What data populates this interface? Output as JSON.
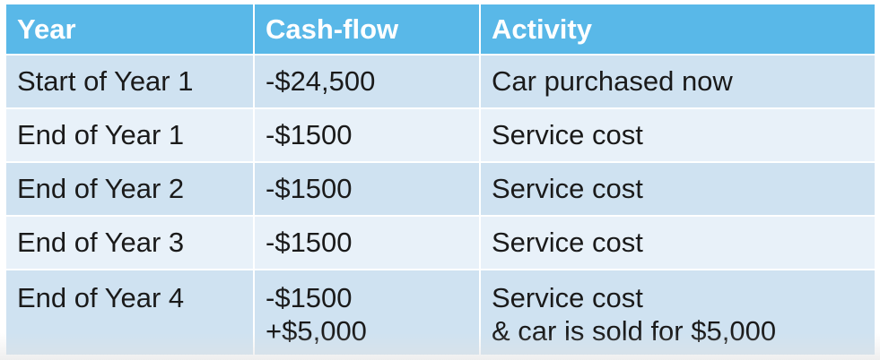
{
  "table": {
    "headers": [
      "Year",
      "Cash-flow",
      "Activity"
    ],
    "rows": [
      {
        "year": "Start of Year 1",
        "cashflow": [
          "-$24,500"
        ],
        "activity": [
          "Car purchased now"
        ]
      },
      {
        "year": "End of Year 1",
        "cashflow": [
          "-$1500"
        ],
        "activity": [
          "Service cost"
        ]
      },
      {
        "year": "End of Year 2",
        "cashflow": [
          "-$1500"
        ],
        "activity": [
          "Service cost"
        ]
      },
      {
        "year": "End of Year 3",
        "cashflow": [
          "-$1500"
        ],
        "activity": [
          "Service cost"
        ]
      },
      {
        "year": "End of Year 4",
        "cashflow": [
          "-$1500",
          "+$5,000"
        ],
        "activity": [
          "Service cost",
          "& car is sold for $5,000"
        ]
      }
    ]
  },
  "colors": {
    "header_bg": "#59b8e8",
    "header_text": "#ffffff",
    "row_odd_bg": "#cfe2f1",
    "row_even_bg": "#e8f1f9",
    "body_text": "#1a1a1a"
  }
}
